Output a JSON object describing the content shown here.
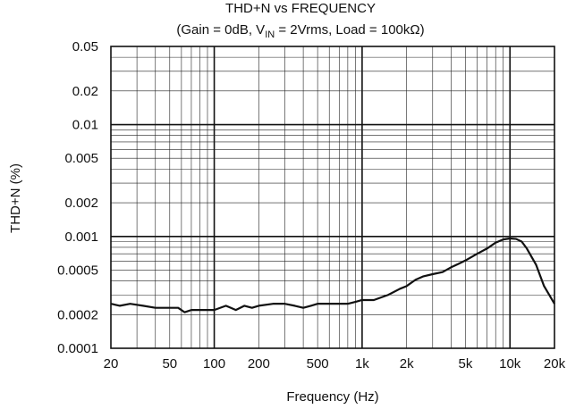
{
  "chart_data": {
    "type": "line",
    "title": "THD+N vs FREQUENCY",
    "subtitle_parts": {
      "before_sub": "(Gain = 0dB, V",
      "sub": "IN",
      "after_sub": " = 2Vrms, Load = 100kΩ)"
    },
    "xlabel": "Frequency (Hz)",
    "ylabel": "THD+N (%)",
    "x_scale": "log",
    "y_scale": "log",
    "xlim": [
      20,
      20000
    ],
    "ylim": [
      0.0001,
      0.05
    ],
    "grid": true,
    "x_ticks": [
      {
        "value": 20,
        "label": "20"
      },
      {
        "value": 50,
        "label": "50"
      },
      {
        "value": 100,
        "label": "100"
      },
      {
        "value": 200,
        "label": "200"
      },
      {
        "value": 500,
        "label": "500"
      },
      {
        "value": 1000,
        "label": "1k"
      },
      {
        "value": 2000,
        "label": "2k"
      },
      {
        "value": 5000,
        "label": "5k"
      },
      {
        "value": 10000,
        "label": "10k"
      },
      {
        "value": 20000,
        "label": "20k"
      }
    ],
    "y_ticks": [
      {
        "value": 0.05,
        "label": "0.05"
      },
      {
        "value": 0.02,
        "label": "0.02"
      },
      {
        "value": 0.01,
        "label": "0.01"
      },
      {
        "value": 0.005,
        "label": "0.005"
      },
      {
        "value": 0.002,
        "label": "0.002"
      },
      {
        "value": 0.001,
        "label": "0.001"
      },
      {
        "value": 0.0005,
        "label": "0.0005"
      },
      {
        "value": 0.0002,
        "label": "0.0002"
      },
      {
        "value": 0.0001,
        "label": "0.0001"
      }
    ],
    "series": [
      {
        "x": [
          20,
          23,
          27,
          33,
          40,
          50,
          57,
          63,
          70,
          80,
          90,
          100,
          120,
          140,
          160,
          180,
          200,
          250,
          300,
          350,
          400,
          450,
          500,
          600,
          700,
          800,
          900,
          1000,
          1200,
          1500,
          1800,
          2000,
          2300,
          2600,
          3000,
          3500,
          4000,
          4500,
          5000,
          6000,
          7000,
          8000,
          9000,
          10000,
          11000,
          12000,
          13000,
          15000,
          17000,
          20000
        ],
        "y": [
          0.00025,
          0.00024,
          0.00025,
          0.00024,
          0.00023,
          0.00023,
          0.00023,
          0.00021,
          0.00022,
          0.00022,
          0.00022,
          0.00022,
          0.00024,
          0.00022,
          0.00024,
          0.00023,
          0.00024,
          0.00025,
          0.00025,
          0.00024,
          0.00023,
          0.00024,
          0.00025,
          0.00025,
          0.00025,
          0.00025,
          0.00026,
          0.00027,
          0.00027,
          0.0003,
          0.00034,
          0.00036,
          0.00041,
          0.00044,
          0.00046,
          0.00048,
          0.00053,
          0.00057,
          0.00061,
          0.0007,
          0.00078,
          0.00088,
          0.00094,
          0.00096,
          0.00095,
          0.0009,
          0.00078,
          0.00056,
          0.00036,
          0.00025
        ]
      }
    ]
  }
}
